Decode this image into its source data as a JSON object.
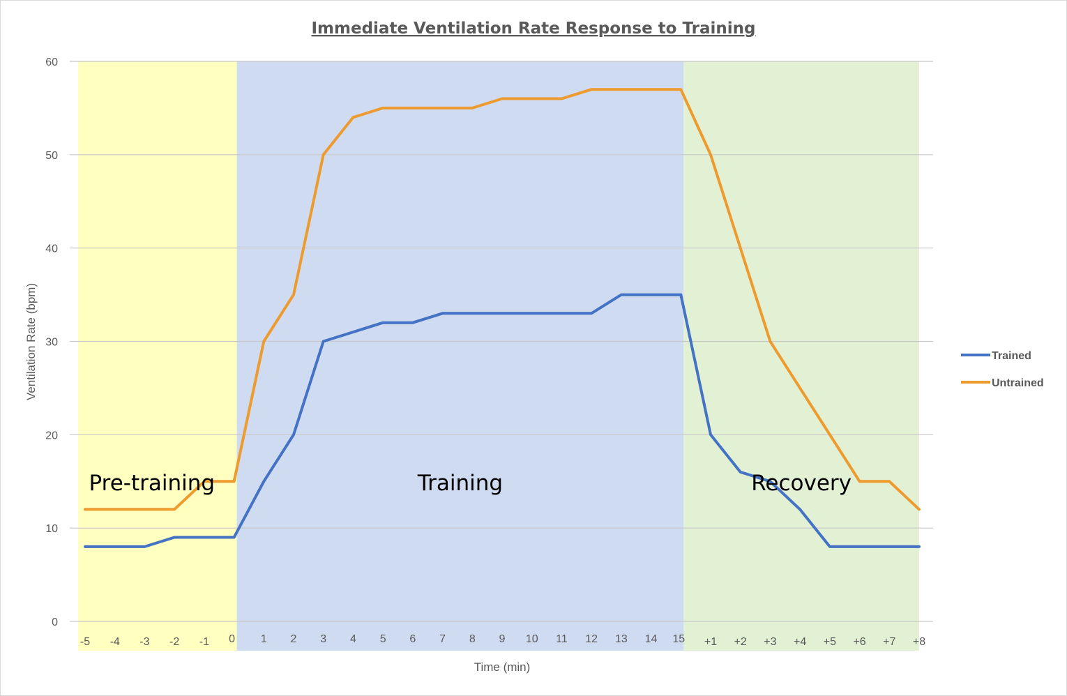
{
  "chart_data": {
    "type": "line",
    "title": "Immediate Ventilation Rate Response to Training",
    "xlabel": "Time (min)",
    "ylabel": "Ventilation Rate (bpm)",
    "ylim": [
      0,
      60
    ],
    "yticks": [
      0,
      10,
      20,
      30,
      40,
      50,
      60
    ],
    "grid": true,
    "legend_position": "right",
    "categories": [
      "-5",
      "-4",
      "-3",
      "-2",
      "-1",
      "0",
      "1",
      "2",
      "3",
      "4",
      "5",
      "6",
      "7",
      "8",
      "9",
      "10",
      "11",
      "12",
      "13",
      "14",
      "15",
      "+1",
      "+2",
      "+3",
      "+4",
      "+5",
      "+6",
      "+7",
      "+8"
    ],
    "series": [
      {
        "name": "Trained",
        "color": "#4472C4",
        "values": [
          8,
          8,
          8,
          9,
          9,
          9,
          15,
          20,
          30,
          31,
          32,
          32,
          33,
          33,
          33,
          33,
          33,
          33,
          35,
          35,
          35,
          20,
          16,
          15,
          12,
          8,
          8,
          8,
          8
        ]
      },
      {
        "name": "Untrained",
        "color": "#ED9B2F",
        "values": [
          12,
          12,
          12,
          12,
          15,
          15,
          30,
          35,
          50,
          54,
          55,
          55,
          55,
          55,
          56,
          56,
          56,
          57,
          57,
          57,
          57,
          50,
          40,
          30,
          25,
          20,
          15,
          15,
          12
        ]
      }
    ],
    "bands": [
      {
        "label": "Pre-training",
        "from": "-5",
        "to": "0",
        "color": "#FFFFC0"
      },
      {
        "label": "Training",
        "from": "0",
        "to": "15",
        "color": "#CFDBF1"
      },
      {
        "label": "Recovery",
        "from": "15",
        "to": "+8",
        "color": "#E2F0D3"
      }
    ]
  }
}
